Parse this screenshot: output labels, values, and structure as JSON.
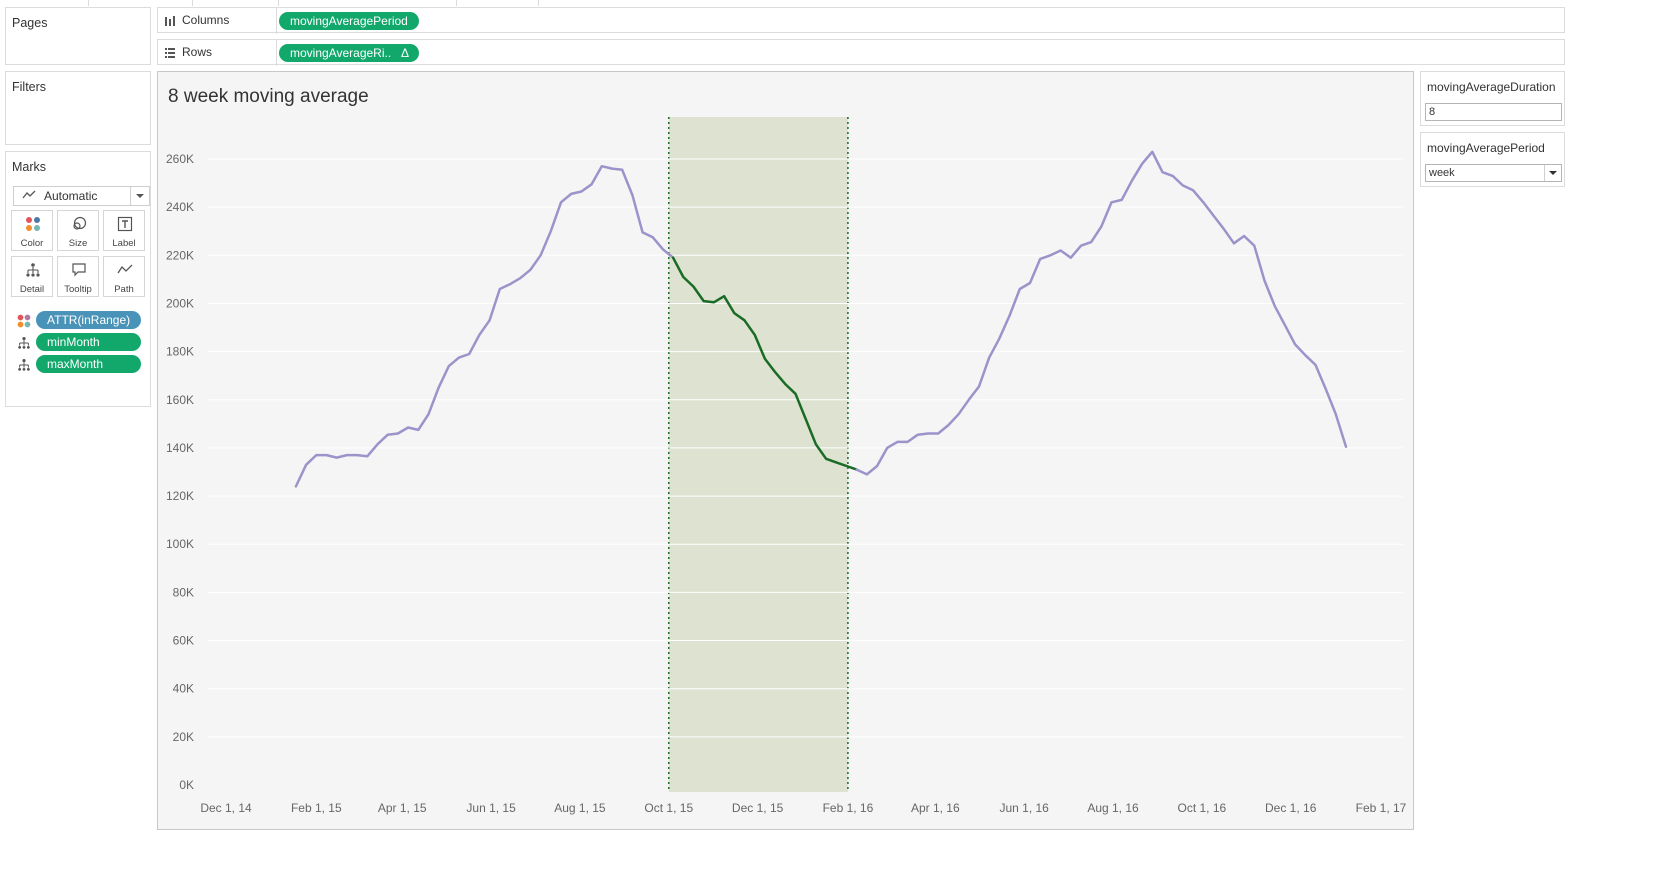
{
  "left": {
    "pages": {
      "title": "Pages"
    },
    "filters": {
      "title": "Filters"
    },
    "marks": {
      "title": "Marks",
      "mark_type": "Automatic",
      "buttons": [
        {
          "label": "Color",
          "icon": "color-icon"
        },
        {
          "label": "Size",
          "icon": "size-icon"
        },
        {
          "label": "Label",
          "icon": "label-icon"
        },
        {
          "label": "Detail",
          "icon": "detail-icon"
        },
        {
          "label": "Tooltip",
          "icon": "tooltip-icon"
        },
        {
          "label": "Path",
          "icon": "path-icon"
        }
      ],
      "pills": [
        {
          "label": "ATTR(inRange)",
          "icon": "color-icon",
          "color": "#4a93b8"
        },
        {
          "label": "minMonth",
          "icon": "detail-icon",
          "color": "#13a86b"
        },
        {
          "label": "maxMonth",
          "icon": "detail-icon",
          "color": "#13a86b"
        }
      ]
    }
  },
  "shelves": {
    "columns": {
      "label": "Columns",
      "icon": "columns-icon",
      "pill": "movingAveragePeriod"
    },
    "rows": {
      "label": "Rows",
      "icon": "rows-icon",
      "pill": "movingAverageRi..",
      "pill_glyph": "Δ"
    }
  },
  "controls": {
    "duration": {
      "title": "movingAverageDuration",
      "value": "8"
    },
    "period": {
      "title": "movingAveragePeriod",
      "value": "week"
    }
  },
  "colors": {
    "line_out": "#9b93c9",
    "line_in": "#1a6b26",
    "band_fill": "#dde3d0",
    "band_border": "#1a6b26",
    "pill_green": "#13a86b",
    "pill_blue": "#4a93b8"
  },
  "chart_data": {
    "type": "line",
    "title": "8 week moving average",
    "x_ticks": [
      "Dec 1, 14",
      "Feb 1, 15",
      "Apr 1, 15",
      "Jun 1, 15",
      "Aug 1, 15",
      "Oct 1, 15",
      "Dec 1, 15",
      "Feb 1, 16",
      "Apr 1, 16",
      "Jun 1, 16",
      "Aug 1, 16",
      "Oct 1, 16",
      "Dec 1, 16",
      "Feb 1, 17"
    ],
    "y_ticks": [
      "0K",
      "20K",
      "40K",
      "60K",
      "80K",
      "100K",
      "120K",
      "140K",
      "160K",
      "180K",
      "200K",
      "220K",
      "240K",
      "260K"
    ],
    "ylim": [
      0,
      260000
    ],
    "xlim": [
      "2014-12-01",
      "2017-02-01"
    ],
    "highlight_range": [
      "2015-10-01",
      "2016-02-01"
    ],
    "series": [
      {
        "values": [
          [
            "2015-01-18",
            124000
          ],
          [
            "2015-01-25",
            133000
          ],
          [
            "2015-02-01",
            137000
          ],
          [
            "2015-02-08",
            137000
          ],
          [
            "2015-02-15",
            136000
          ],
          [
            "2015-02-22",
            137000
          ],
          [
            "2015-03-01",
            137000
          ],
          [
            "2015-03-08",
            136500
          ],
          [
            "2015-03-15",
            141500
          ],
          [
            "2015-03-22",
            145500
          ],
          [
            "2015-03-29",
            146000
          ],
          [
            "2015-04-05",
            148500
          ],
          [
            "2015-04-12",
            147500
          ],
          [
            "2015-04-19",
            154000
          ],
          [
            "2015-04-26",
            165000
          ],
          [
            "2015-05-03",
            174000
          ],
          [
            "2015-05-10",
            177500
          ],
          [
            "2015-05-17",
            179000
          ],
          [
            "2015-05-24",
            187000
          ],
          [
            "2015-05-31",
            193000
          ],
          [
            "2015-06-07",
            206000
          ],
          [
            "2015-06-14",
            208000
          ],
          [
            "2015-06-21",
            210500
          ],
          [
            "2015-06-28",
            214000
          ],
          [
            "2015-07-05",
            220000
          ],
          [
            "2015-07-12",
            230000
          ],
          [
            "2015-07-19",
            242000
          ],
          [
            "2015-07-26",
            245500
          ],
          [
            "2015-08-02",
            246500
          ],
          [
            "2015-08-09",
            249500
          ],
          [
            "2015-08-16",
            257000
          ],
          [
            "2015-08-23",
            256000
          ],
          [
            "2015-08-30",
            255500
          ],
          [
            "2015-09-06",
            245000
          ],
          [
            "2015-09-13",
            229500
          ],
          [
            "2015-09-20",
            227500
          ],
          [
            "2015-09-27",
            222500
          ],
          [
            "2015-10-04",
            219000
          ]
        ]
      },
      {
        "values": [
          [
            "2015-10-04",
            219000
          ],
          [
            "2015-10-11",
            211000
          ],
          [
            "2015-10-18",
            207000
          ],
          [
            "2015-10-25",
            201000
          ],
          [
            "2015-11-01",
            200500
          ],
          [
            "2015-11-08",
            203000
          ],
          [
            "2015-11-15",
            196000
          ],
          [
            "2015-11-22",
            193000
          ],
          [
            "2015-11-29",
            187000
          ],
          [
            "2015-12-06",
            177000
          ],
          [
            "2015-12-13",
            171500
          ],
          [
            "2015-12-20",
            166500
          ],
          [
            "2015-12-27",
            162500
          ],
          [
            "2016-01-03",
            152000
          ],
          [
            "2016-01-10",
            141500
          ],
          [
            "2016-01-17",
            135500
          ],
          [
            "2016-01-24",
            134000
          ],
          [
            "2016-01-31",
            132500
          ],
          [
            "2016-02-07",
            131000
          ]
        ]
      },
      {
        "values": [
          [
            "2016-02-07",
            131000
          ],
          [
            "2016-02-14",
            129000
          ],
          [
            "2016-02-21",
            132500
          ],
          [
            "2016-02-28",
            140000
          ],
          [
            "2016-03-06",
            142500
          ],
          [
            "2016-03-13",
            142500
          ],
          [
            "2016-03-20",
            145500
          ],
          [
            "2016-03-27",
            146000
          ],
          [
            "2016-04-03",
            146000
          ],
          [
            "2016-04-10",
            149500
          ],
          [
            "2016-04-17",
            154000
          ],
          [
            "2016-04-24",
            160000
          ],
          [
            "2016-05-01",
            165500
          ],
          [
            "2016-05-08",
            177500
          ],
          [
            "2016-05-15",
            185500
          ],
          [
            "2016-05-22",
            195000
          ],
          [
            "2016-05-29",
            206000
          ],
          [
            "2016-06-05",
            208500
          ],
          [
            "2016-06-12",
            218500
          ],
          [
            "2016-06-19",
            220000
          ],
          [
            "2016-06-26",
            222000
          ],
          [
            "2016-07-03",
            219000
          ],
          [
            "2016-07-10",
            224000
          ],
          [
            "2016-07-17",
            225500
          ],
          [
            "2016-07-24",
            232000
          ],
          [
            "2016-07-31",
            242000
          ],
          [
            "2016-08-07",
            243000
          ],
          [
            "2016-08-14",
            251000
          ],
          [
            "2016-08-21",
            258000
          ],
          [
            "2016-08-28",
            263000
          ],
          [
            "2016-09-04",
            254500
          ],
          [
            "2016-09-11",
            253000
          ],
          [
            "2016-09-18",
            249000
          ],
          [
            "2016-09-25",
            247000
          ],
          [
            "2016-10-02",
            242000
          ],
          [
            "2016-10-09",
            236500
          ],
          [
            "2016-10-16",
            231000
          ],
          [
            "2016-10-23",
            225000
          ],
          [
            "2016-10-30",
            228000
          ],
          [
            "2016-11-06",
            224000
          ],
          [
            "2016-11-13",
            209500
          ],
          [
            "2016-11-20",
            199000
          ],
          [
            "2016-11-27",
            191000
          ],
          [
            "2016-12-04",
            183000
          ],
          [
            "2016-12-11",
            178500
          ],
          [
            "2016-12-18",
            174500
          ],
          [
            "2016-12-25",
            164500
          ],
          [
            "2017-01-01",
            154000
          ],
          [
            "2017-01-08",
            140500
          ]
        ]
      }
    ]
  }
}
